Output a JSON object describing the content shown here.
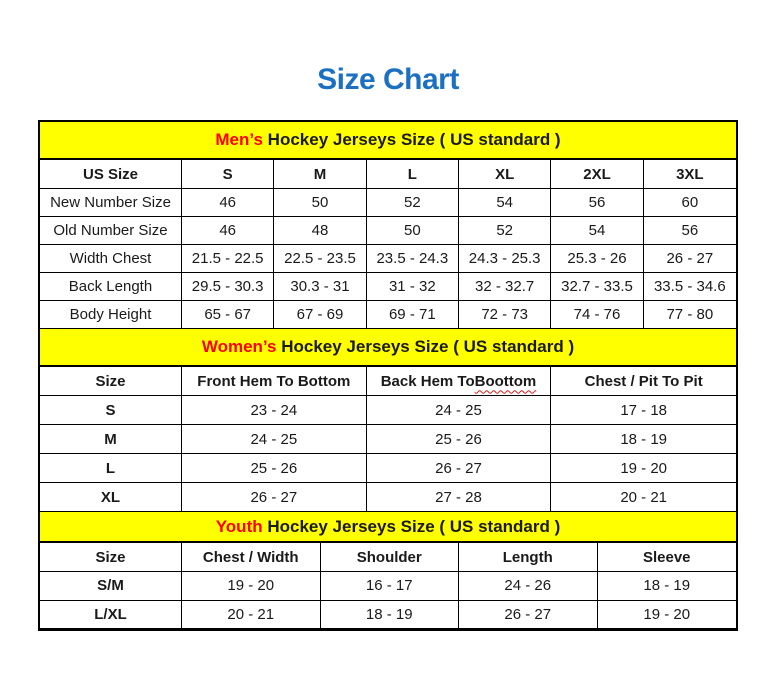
{
  "page": {
    "title": "Size Chart"
  },
  "colors": {
    "title_blue": "#1B70C2",
    "band_yellow": "#FFFF00",
    "accent_red": "#FF0000",
    "border_black": "#000000",
    "text_black": "#1A1A1A"
  },
  "tables": [
    {
      "id": "mens",
      "band": {
        "highlight": "Men’s",
        "rest": " Hockey Jerseys Size ( US standard )"
      },
      "columns": [
        "US Size",
        "S",
        "M",
        "L",
        "XL",
        "2XL",
        "3XL"
      ],
      "rows": [
        {
          "label": "New Number Size",
          "values": [
            "46",
            "50",
            "52",
            "54",
            "56",
            "60"
          ]
        },
        {
          "label": "Old Number Size",
          "values": [
            "46",
            "48",
            "50",
            "52",
            "54",
            "56"
          ]
        },
        {
          "label": "Width Chest",
          "values": [
            "21.5 - 22.5",
            "22.5 - 23.5",
            "23.5 - 24.3",
            "24.3 - 25.3",
            "25.3 - 26",
            "26 - 27"
          ]
        },
        {
          "label": "Back Length",
          "values": [
            "29.5 - 30.3",
            "30.3 - 31",
            "31 - 32",
            "32 - 32.7",
            "32.7 - 33.5",
            "33.5 - 34.6"
          ]
        },
        {
          "label": "Body Height",
          "values": [
            "65 - 67",
            "67 - 69",
            "69 - 71",
            "72 - 73",
            "74 - 76",
            "77 - 80"
          ]
        }
      ]
    },
    {
      "id": "womens",
      "band": {
        "highlight": "Women’s",
        "rest": " Hockey Jerseys Size ( US standard )"
      },
      "columns": [
        "Size",
        "Front Hem To Bottom",
        "Back Hem To Boottom",
        "Chest / Pit To Pit"
      ],
      "spellcheck_underline_word": "Boottom",
      "rows": [
        {
          "label": "S",
          "values": [
            "23 - 24",
            "24 - 25",
            "17 - 18"
          ]
        },
        {
          "label": "M",
          "values": [
            "24 - 25",
            "25 - 26",
            "18 - 19"
          ]
        },
        {
          "label": "L",
          "values": [
            "25 - 26",
            "26 - 27",
            "19 - 20"
          ]
        },
        {
          "label": "XL",
          "values": [
            "26 - 27",
            "27 - 28",
            "20 - 21"
          ]
        }
      ]
    },
    {
      "id": "youth",
      "band": {
        "highlight": "Youth",
        "rest": " Hockey Jerseys Size ( US standard )"
      },
      "columns": [
        "Size",
        "Chest / Width",
        "Shoulder",
        "Length",
        "Sleeve"
      ],
      "rows": [
        {
          "label": "S/M",
          "values": [
            "19 - 20",
            "16 - 17",
            "24 - 26",
            "18 - 19"
          ]
        },
        {
          "label": "L/XL",
          "values": [
            "20 - 21",
            "18 - 19",
            "26 - 27",
            "19 - 20"
          ]
        }
      ]
    }
  ]
}
